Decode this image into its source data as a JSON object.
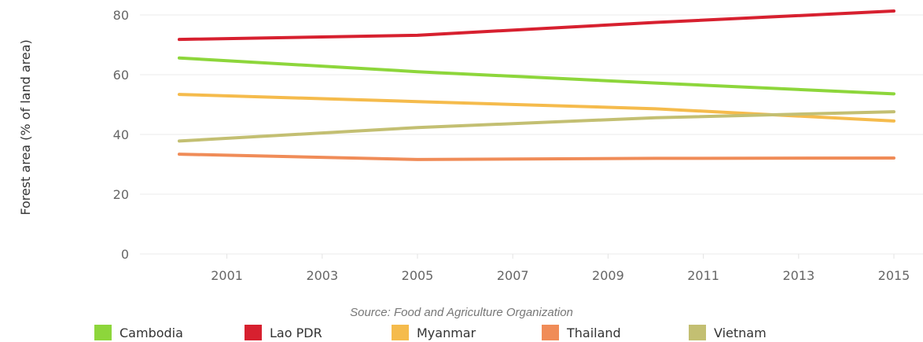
{
  "chart_data": {
    "type": "line",
    "ylabel": "Forest area (% of land area)",
    "xlabel": "",
    "source": "Source: Food and Agriculture Organization",
    "x": [
      2000,
      2005,
      2010,
      2015
    ],
    "xticks": [
      "2001",
      "2003",
      "2005",
      "2007",
      "2009",
      "2011",
      "2013",
      "2015"
    ],
    "yticks": [
      "0",
      "20",
      "40",
      "60",
      "80"
    ],
    "xlim": [
      1999,
      2016
    ],
    "ylim": [
      0,
      80
    ],
    "grid": true,
    "legend_position": "bottom",
    "series": [
      {
        "name": "Cambodia",
        "color": "#8dd63b",
        "values": [
          65.6,
          61.0,
          57.2,
          53.6
        ]
      },
      {
        "name": "Lao PDR",
        "color": "#d7202f",
        "values": [
          71.8,
          73.2,
          77.5,
          81.3
        ]
      },
      {
        "name": "Myanmar",
        "color": "#f5bb4c",
        "values": [
          53.4,
          51.0,
          48.6,
          44.5
        ]
      },
      {
        "name": "Thailand",
        "color": "#f08c58",
        "values": [
          33.4,
          31.6,
          32.0,
          32.1
        ]
      },
      {
        "name": "Vietnam",
        "color": "#c3bf72",
        "values": [
          37.8,
          42.3,
          45.6,
          47.6
        ]
      }
    ]
  }
}
